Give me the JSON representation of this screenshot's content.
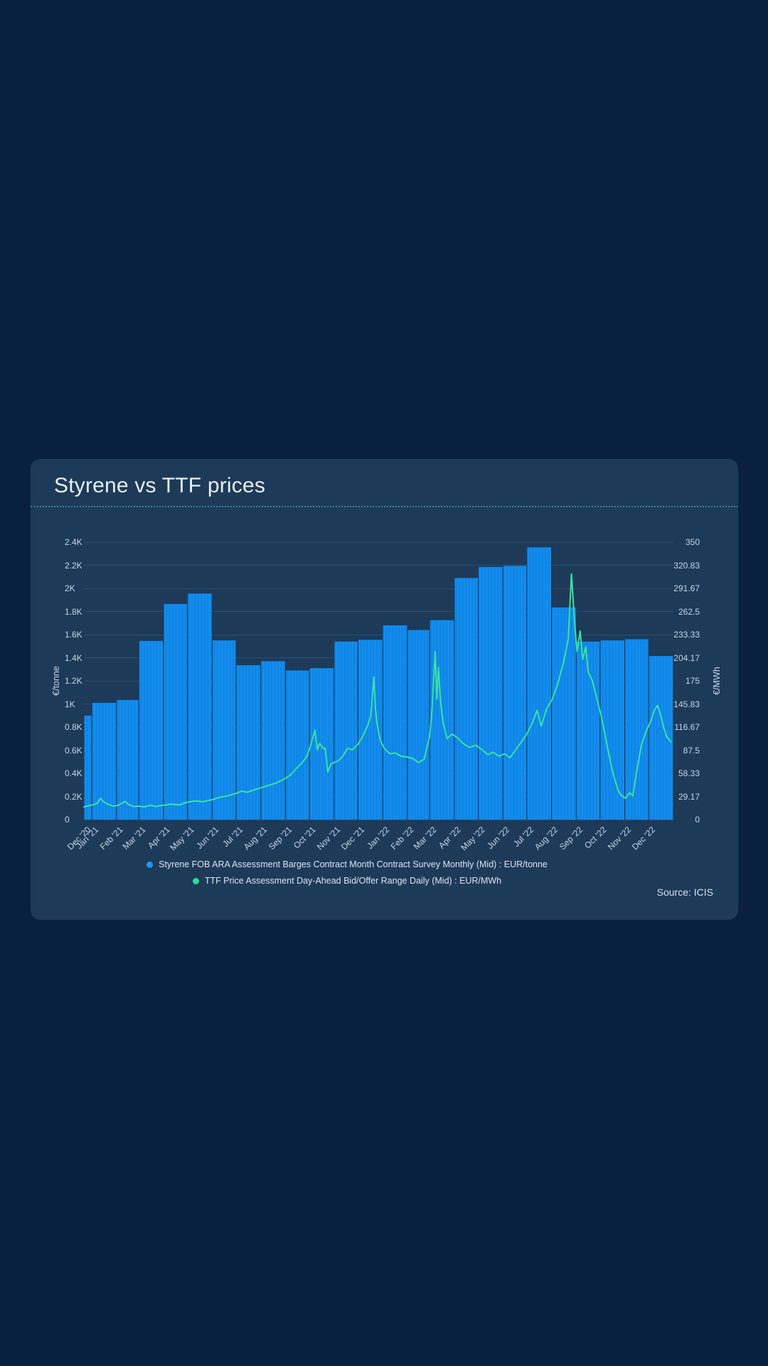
{
  "card": {
    "title": "Styrene vs TTF prices",
    "source": "Source: ICIS"
  },
  "colors": {
    "page_bg": "#0A2040",
    "card_bg": "#1D3A59",
    "title_text": "#E9EFF6",
    "separator": "#2F84A6",
    "gridline": "#2E4D6E",
    "axis_label": "#C9D5E2",
    "bar": "#0C86E8",
    "bar_stripe": "#2B98EF",
    "line": "#3BE19F",
    "legend_text": "#DCE5EE",
    "legend_styrene_dot": "#1E96F0",
    "legend_ttf_dot": "#2EDC98",
    "source_text": "#D7E1EC"
  },
  "chart_data": {
    "type": "combo",
    "title": "Styrene vs TTF prices",
    "source": "Source: ICIS",
    "grid": "horizontal-only",
    "legend_position": "bottom-center",
    "y_axis_left": {
      "title": "€/tonne",
      "min": 0,
      "max": 2400,
      "ticks": [
        "2.4K",
        "2.2K",
        "2K",
        "1.8K",
        "1.6K",
        "1.4K",
        "1.2K",
        "1K",
        "0.8K",
        "0.6K",
        "0.4K",
        "0.2K",
        "0"
      ]
    },
    "y_axis_right": {
      "title": "€/MWh",
      "min": 0,
      "max": 350,
      "ticks": [
        "350",
        "320.83",
        "291.67",
        "262.5",
        "233.33",
        "204.17",
        "175",
        "145.83",
        "116.67",
        "87.5",
        "58.33",
        "29.17",
        "0"
      ]
    },
    "x_axis": {
      "labels": [
        "Dec '20",
        "Jan '21",
        "Feb '21",
        "Mar '21",
        "Apr '21",
        "May '21",
        "Jun '21",
        "Jul '21",
        "Aug '21",
        "Sep '21",
        "Oct '21",
        "Nov '21",
        "Dec '21",
        "Jan '22",
        "Feb '22",
        "Mar '22",
        "Apr '22",
        "May '22",
        "Jun '22",
        "Jul '22",
        "Aug '22",
        "Sep '22",
        "Oct '22",
        "Nov '22",
        "Dec '22"
      ],
      "total_days": 740
    },
    "series": [
      {
        "name": "Styrene FOB ARA Assessment Barges Contract Month Contract Survey Monthly (Mid) : EUR/tonne",
        "type": "column",
        "axis": "left",
        "unit": "EUR/tonne",
        "points": [
          {
            "month": "Dec '20",
            "days": 10,
            "value": 900
          },
          {
            "month": "Jan '21",
            "days": 31,
            "value": 1010
          },
          {
            "month": "Feb '21",
            "days": 28,
            "value": 1035
          },
          {
            "month": "Mar '21",
            "days": 31,
            "value": 1545
          },
          {
            "month": "Apr '21",
            "days": 30,
            "value": 1865
          },
          {
            "month": "May '21",
            "days": 31,
            "value": 1955
          },
          {
            "month": "Jun '21",
            "days": 30,
            "value": 1550
          },
          {
            "month": "Jul '21",
            "days": 31,
            "value": 1335
          },
          {
            "month": "Aug '21",
            "days": 31,
            "value": 1370
          },
          {
            "month": "Sep '21",
            "days": 30,
            "value": 1290
          },
          {
            "month": "Oct '21",
            "days": 31,
            "value": 1310
          },
          {
            "month": "Nov '21",
            "days": 30,
            "value": 1540
          },
          {
            "month": "Dec '21",
            "days": 31,
            "value": 1555
          },
          {
            "month": "Jan '22",
            "days": 31,
            "value": 1680
          },
          {
            "month": "Feb '22",
            "days": 28,
            "value": 1640
          },
          {
            "month": "Mar '22",
            "days": 31,
            "value": 1725
          },
          {
            "month": "Apr '22",
            "days": 30,
            "value": 2090
          },
          {
            "month": "May '22",
            "days": 31,
            "value": 2185
          },
          {
            "month": "Jun '22",
            "days": 30,
            "value": 2195
          },
          {
            "month": "Jul '22",
            "days": 31,
            "value": 2355
          },
          {
            "month": "Aug '22",
            "days": 31,
            "value": 1835
          },
          {
            "month": "Sep '22",
            "days": 30,
            "value": 1540
          },
          {
            "month": "Oct '22",
            "days": 31,
            "value": 1550
          },
          {
            "month": "Nov '22",
            "days": 30,
            "value": 1560
          },
          {
            "month": "Dec '22",
            "days": 31,
            "value": 1415
          }
        ]
      },
      {
        "name": "TTF Price Assessment Day-Ahead Bid/Offer Range Daily (Mid) : EUR/MWh",
        "type": "line",
        "axis": "right",
        "unit": "EUR/MWh",
        "points": [
          [
            0,
            16
          ],
          [
            6,
            17.5
          ],
          [
            13,
            19
          ],
          [
            17,
            21
          ],
          [
            21,
            27
          ],
          [
            25,
            22
          ],
          [
            31,
            19
          ],
          [
            37,
            17
          ],
          [
            43,
            18
          ],
          [
            48,
            21
          ],
          [
            52,
            23
          ],
          [
            56,
            19
          ],
          [
            62,
            16.5
          ],
          [
            69,
            17
          ],
          [
            76,
            16
          ],
          [
            83,
            18
          ],
          [
            90,
            16.5
          ],
          [
            100,
            18
          ],
          [
            109,
            19.5
          ],
          [
            119,
            18.5
          ],
          [
            130,
            22
          ],
          [
            139,
            23.5
          ],
          [
            149,
            22.5
          ],
          [
            161,
            25
          ],
          [
            170,
            28
          ],
          [
            180,
            30
          ],
          [
            191,
            33
          ],
          [
            198,
            36
          ],
          [
            205,
            34.5
          ],
          [
            212,
            37
          ],
          [
            222,
            40
          ],
          [
            231,
            43
          ],
          [
            241,
            46
          ],
          [
            253,
            52
          ],
          [
            260,
            57
          ],
          [
            267,
            65
          ],
          [
            274,
            72
          ],
          [
            280,
            80
          ],
          [
            284,
            92
          ],
          [
            290,
            113
          ],
          [
            293,
            88
          ],
          [
            296,
            96
          ],
          [
            300,
            90
          ],
          [
            303,
            90
          ],
          [
            306,
            60
          ],
          [
            310,
            70
          ],
          [
            314,
            72
          ],
          [
            319,
            74
          ],
          [
            325,
            80
          ],
          [
            331,
            90
          ],
          [
            337,
            88
          ],
          [
            344,
            95
          ],
          [
            350,
            105
          ],
          [
            356,
            118
          ],
          [
            360,
            130
          ],
          [
            364,
            180
          ],
          [
            366,
            140
          ],
          [
            368,
            120
          ],
          [
            372,
            100
          ],
          [
            377,
            90
          ],
          [
            384,
            83
          ],
          [
            391,
            84
          ],
          [
            398,
            80
          ],
          [
            406,
            79
          ],
          [
            413,
            77
          ],
          [
            420,
            72
          ],
          [
            427,
            76
          ],
          [
            434,
            105
          ],
          [
            437,
            140
          ],
          [
            441,
            212
          ],
          [
            443,
            152
          ],
          [
            445,
            192
          ],
          [
            448,
            145
          ],
          [
            451,
            122
          ],
          [
            456,
            102
          ],
          [
            462,
            108
          ],
          [
            469,
            103
          ],
          [
            476,
            96
          ],
          [
            484,
            91
          ],
          [
            492,
            94
          ],
          [
            500,
            88
          ],
          [
            507,
            82
          ],
          [
            514,
            85
          ],
          [
            521,
            80
          ],
          [
            528,
            83
          ],
          [
            535,
            78
          ],
          [
            542,
            88
          ],
          [
            549,
            98
          ],
          [
            556,
            108
          ],
          [
            563,
            122
          ],
          [
            569,
            138
          ],
          [
            574,
            118
          ],
          [
            581,
            140
          ],
          [
            588,
            152
          ],
          [
            595,
            172
          ],
          [
            602,
            198
          ],
          [
            608,
            228
          ],
          [
            612,
            310
          ],
          [
            616,
            248
          ],
          [
            619,
            212
          ],
          [
            623,
            238
          ],
          [
            626,
            202
          ],
          [
            630,
            218
          ],
          [
            633,
            186
          ],
          [
            638,
            176
          ],
          [
            644,
            152
          ],
          [
            650,
            128
          ],
          [
            657,
            92
          ],
          [
            664,
            58
          ],
          [
            671,
            36
          ],
          [
            675,
            30
          ],
          [
            680,
            27
          ],
          [
            685,
            34
          ],
          [
            689,
            30
          ],
          [
            694,
            62
          ],
          [
            700,
            95
          ],
          [
            706,
            112
          ],
          [
            712,
            125
          ],
          [
            716,
            138
          ],
          [
            720,
            144
          ],
          [
            724,
            132
          ],
          [
            728,
            115
          ],
          [
            732,
            104
          ],
          [
            737,
            98
          ]
        ]
      }
    ]
  }
}
